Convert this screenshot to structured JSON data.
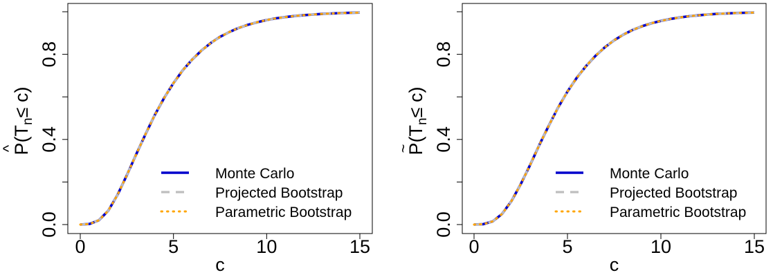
{
  "chart_data": [
    {
      "type": "line",
      "title": "",
      "xlabel": "c",
      "ylabel": {
        "prefix": "P(",
        "symbol": "T",
        "accent": "^",
        "subscript": "n",
        "suffix": "≤ c)"
      },
      "xlim": [
        0,
        15
      ],
      "ylim": [
        0,
        1
      ],
      "xticks": [
        0,
        5,
        10,
        15
      ],
      "yticks": [
        0.0,
        0.4,
        0.8
      ],
      "ytick_labels": [
        "0.0",
        "0.4",
        "0.8"
      ],
      "grid": false,
      "legend_position": "bottom-right",
      "x": [
        0,
        0.5,
        1,
        1.5,
        2,
        2.5,
        3,
        3.5,
        4,
        4.5,
        5,
        5.5,
        6,
        6.5,
        7,
        7.5,
        8,
        8.5,
        9,
        9.5,
        10,
        10.5,
        11,
        11.5,
        12,
        12.5,
        13,
        13.5,
        14,
        14.5,
        15
      ],
      "series": [
        {
          "name": "Monte Carlo",
          "color": "#0000cc",
          "style": "solid",
          "values": [
            0.0,
            0.003,
            0.02,
            0.065,
            0.14,
            0.232,
            0.33,
            0.425,
            0.515,
            0.595,
            0.665,
            0.725,
            0.775,
            0.818,
            0.853,
            0.882,
            0.905,
            0.924,
            0.939,
            0.951,
            0.961,
            0.969,
            0.975,
            0.98,
            0.984,
            0.987,
            0.99,
            0.992,
            0.994,
            0.995,
            0.996
          ]
        },
        {
          "name": "Projected Bootstrap",
          "color": "#bebebe",
          "style": "dashed",
          "values": [
            0.0,
            0.003,
            0.02,
            0.065,
            0.14,
            0.232,
            0.33,
            0.425,
            0.515,
            0.595,
            0.665,
            0.725,
            0.775,
            0.818,
            0.853,
            0.882,
            0.905,
            0.924,
            0.939,
            0.951,
            0.961,
            0.969,
            0.975,
            0.98,
            0.984,
            0.987,
            0.99,
            0.992,
            0.994,
            0.995,
            0.996
          ]
        },
        {
          "name": "Parametric Bootstrap",
          "color": "#ffa500",
          "style": "dotted",
          "values": [
            0.0,
            0.003,
            0.02,
            0.065,
            0.14,
            0.232,
            0.33,
            0.425,
            0.515,
            0.595,
            0.665,
            0.725,
            0.775,
            0.818,
            0.853,
            0.882,
            0.905,
            0.924,
            0.939,
            0.951,
            0.961,
            0.969,
            0.975,
            0.98,
            0.984,
            0.987,
            0.99,
            0.992,
            0.994,
            0.995,
            0.996
          ]
        }
      ]
    },
    {
      "type": "line",
      "title": "",
      "xlabel": "c",
      "ylabel": {
        "prefix": "P(",
        "symbol": "T",
        "accent": "~",
        "subscript": "n",
        "suffix": "≤ c)"
      },
      "xlim": [
        0,
        15
      ],
      "ylim": [
        0,
        1
      ],
      "xticks": [
        0,
        5,
        10,
        15
      ],
      "yticks": [
        0.0,
        0.4,
        0.8
      ],
      "ytick_labels": [
        "0.0",
        "0.4",
        "0.8"
      ],
      "grid": false,
      "legend_position": "bottom-right",
      "x": [
        0,
        0.5,
        1,
        1.5,
        2,
        2.5,
        3,
        3.5,
        4,
        4.5,
        5,
        5.5,
        6,
        6.5,
        7,
        7.5,
        8,
        8.5,
        9,
        9.5,
        10,
        10.5,
        11,
        11.5,
        12,
        12.5,
        13,
        13.5,
        14,
        14.5,
        15
      ],
      "series": [
        {
          "name": "Monte Carlo",
          "color": "#0000cc",
          "style": "solid",
          "values": [
            0.0,
            0.002,
            0.015,
            0.05,
            0.11,
            0.19,
            0.28,
            0.375,
            0.465,
            0.55,
            0.625,
            0.69,
            0.745,
            0.793,
            0.833,
            0.866,
            0.893,
            0.915,
            0.932,
            0.946,
            0.957,
            0.966,
            0.973,
            0.979,
            0.983,
            0.987,
            0.99,
            0.992,
            0.994,
            0.995,
            0.996
          ]
        },
        {
          "name": "Projected Bootstrap",
          "color": "#bebebe",
          "style": "dashed",
          "values": [
            0.0,
            0.002,
            0.015,
            0.05,
            0.11,
            0.19,
            0.28,
            0.375,
            0.465,
            0.55,
            0.625,
            0.69,
            0.745,
            0.793,
            0.833,
            0.866,
            0.893,
            0.915,
            0.932,
            0.946,
            0.957,
            0.966,
            0.973,
            0.979,
            0.983,
            0.987,
            0.99,
            0.992,
            0.994,
            0.995,
            0.996
          ]
        },
        {
          "name": "Parametric Bootstrap",
          "color": "#ffa500",
          "style": "dotted",
          "values": [
            0.0,
            0.002,
            0.015,
            0.05,
            0.11,
            0.19,
            0.28,
            0.375,
            0.465,
            0.55,
            0.625,
            0.69,
            0.745,
            0.793,
            0.833,
            0.866,
            0.893,
            0.915,
            0.932,
            0.946,
            0.957,
            0.966,
            0.973,
            0.979,
            0.983,
            0.987,
            0.99,
            0.992,
            0.994,
            0.995,
            0.996
          ]
        }
      ]
    }
  ]
}
